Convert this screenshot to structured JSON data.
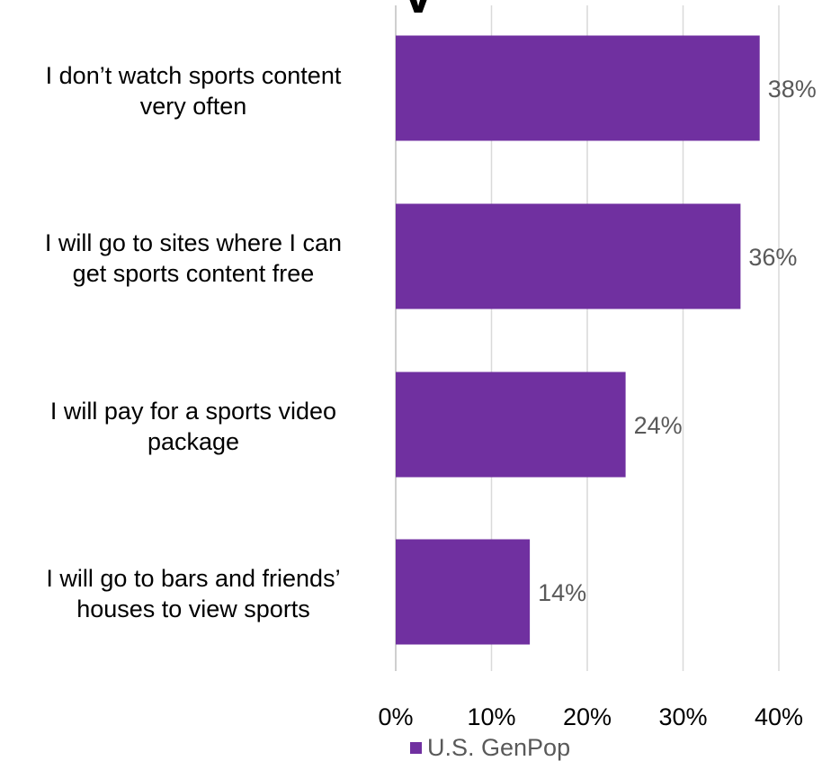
{
  "chart_data": {
    "type": "bar",
    "orientation": "horizontal",
    "title_fragment": "V",
    "categories": [
      "I don’t watch sports content very often",
      "I will go to sites where I can get sports content free",
      "I will pay for a sports video package",
      "I will go to bars and friends’ houses to view sports"
    ],
    "category_labels": [
      "I don’t watch sports content\nvery often",
      "I will go to sites where I can\nget sports content free",
      "I will pay for a sports video\npackage",
      "I will go to bars and friends’\nhouses to view sports"
    ],
    "series": [
      {
        "name": "U.S. GenPop",
        "values": [
          38,
          36,
          24,
          14
        ],
        "data_labels": [
          "38%",
          "36%",
          "24%",
          "14%"
        ]
      }
    ],
    "xlim": [
      0,
      40
    ],
    "x_ticks": [
      0,
      10,
      20,
      30,
      40
    ],
    "x_tick_labels": [
      "0%",
      "10%",
      "20%",
      "30%",
      "40%"
    ],
    "grid": true,
    "legend_position": "bottom",
    "colors": {
      "bar": "#7030A0",
      "grid": "#d9d9d9",
      "axis": "#bfbfbf",
      "label_text": "#595959",
      "category_text": "#000000"
    }
  }
}
